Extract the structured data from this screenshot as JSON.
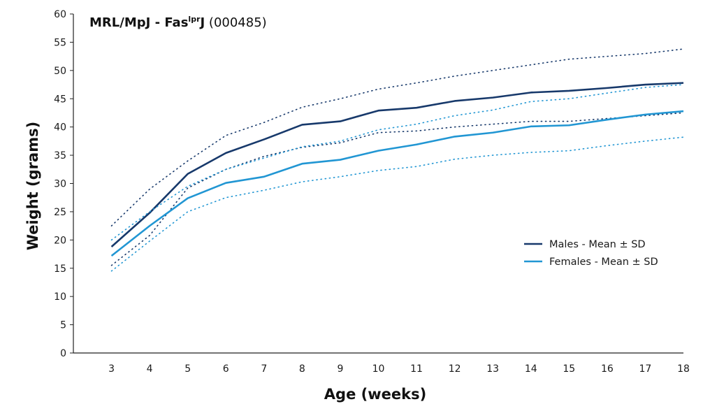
{
  "chart_data": {
    "type": "line",
    "title": {
      "main": "MRL/MpJ - Fas",
      "superscript": "lpr",
      "main_suffix": "J",
      "stock": " (000485)"
    },
    "xlabel": "Age (weeks)",
    "ylabel": "Weight (grams)",
    "x": [
      3,
      4,
      5,
      6,
      7,
      8,
      9,
      10,
      11,
      12,
      13,
      14,
      15,
      16,
      17,
      18
    ],
    "xlim": [
      2,
      18
    ],
    "ylim": [
      0,
      60
    ],
    "yticks": [
      0,
      5,
      10,
      15,
      20,
      25,
      30,
      35,
      40,
      45,
      50,
      55,
      60
    ],
    "grid": false,
    "legend_position": "right",
    "series": [
      {
        "name": "Males - Mean ± SD",
        "color": "#17396b",
        "mean": [
          18.8,
          24.8,
          31.7,
          35.4,
          37.8,
          40.4,
          41.0,
          42.9,
          43.4,
          44.6,
          45.2,
          46.1,
          46.4,
          46.9,
          47.5,
          47.8
        ],
        "upper": [
          22.5,
          29.0,
          34.0,
          38.5,
          40.8,
          43.5,
          45.0,
          46.7,
          47.8,
          49.0,
          50.0,
          51.0,
          52.0,
          52.5,
          53.0,
          53.8
        ],
        "lower": [
          15.5,
          20.8,
          29.2,
          32.5,
          34.8,
          36.4,
          37.2,
          39.0,
          39.3,
          40.0,
          40.5,
          41.0,
          41.0,
          41.5,
          42.0,
          42.5
        ]
      },
      {
        "name": "Females - Mean ± SD",
        "color": "#2196d3",
        "mean": [
          17.2,
          22.5,
          27.4,
          30.1,
          31.2,
          33.5,
          34.2,
          35.8,
          36.9,
          38.3,
          39.0,
          40.1,
          40.3,
          41.3,
          42.2,
          42.8
        ],
        "upper": [
          20.0,
          25.0,
          29.5,
          32.5,
          34.5,
          36.5,
          37.5,
          39.5,
          40.5,
          42.0,
          43.0,
          44.5,
          45.0,
          46.0,
          47.0,
          47.5
        ],
        "lower": [
          14.5,
          19.8,
          25.0,
          27.5,
          28.8,
          30.3,
          31.2,
          32.3,
          33.0,
          34.3,
          35.0,
          35.5,
          35.8,
          36.7,
          37.5,
          38.2
        ]
      }
    ]
  }
}
